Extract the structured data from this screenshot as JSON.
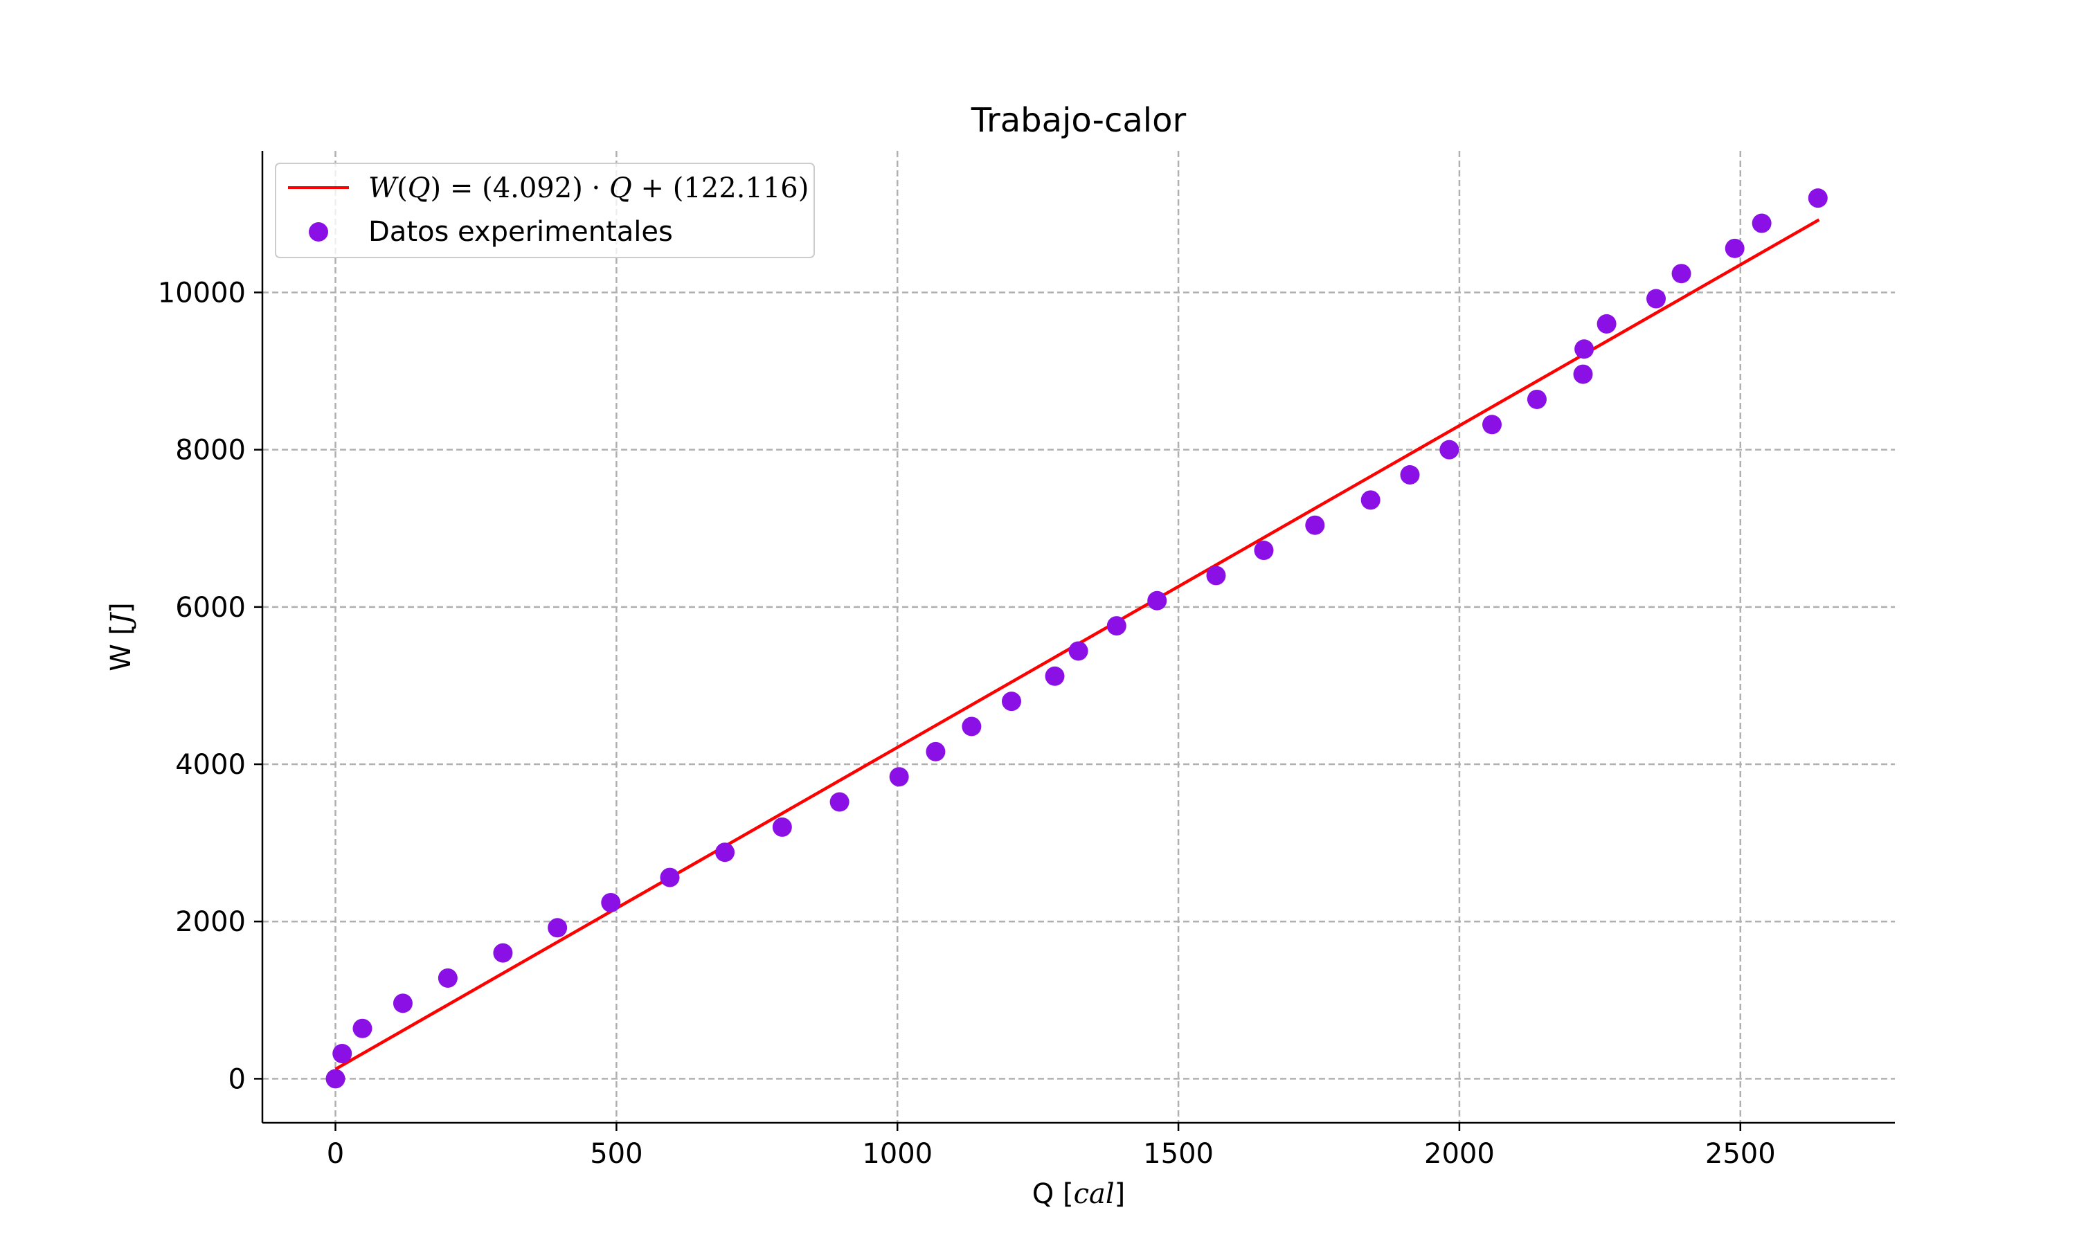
{
  "chart_data": {
    "type": "scatter",
    "title": "Trabajo-calor",
    "xlabel": "Q [cal]",
    "ylabel": "W [J]",
    "xlim": [
      -130,
      2775
    ],
    "ylim": [
      -560,
      11800
    ],
    "xticks": [
      0,
      500,
      1000,
      1500,
      2000,
      2500
    ],
    "yticks": [
      0,
      2000,
      4000,
      6000,
      8000,
      10000
    ],
    "grid": true,
    "legend_position": "top-left",
    "fit_line": {
      "name": "W(Q) = (4.092) · Q + (122.116)",
      "slope": 4.092,
      "intercept": 122.116,
      "x_range": [
        0,
        2640
      ],
      "color": "#ff0000"
    },
    "series": [
      {
        "name": "Datos experimentales",
        "color": "#8b10e6",
        "points": [
          [
            0,
            0
          ],
          [
            12,
            320
          ],
          [
            48,
            640
          ],
          [
            120,
            960
          ],
          [
            200,
            1280
          ],
          [
            298,
            1600
          ],
          [
            395,
            1920
          ],
          [
            490,
            2240
          ],
          [
            595,
            2560
          ],
          [
            693,
            2880
          ],
          [
            795,
            3200
          ],
          [
            897,
            3520
          ],
          [
            1003,
            3840
          ],
          [
            1068,
            4160
          ],
          [
            1132,
            4480
          ],
          [
            1203,
            4800
          ],
          [
            1280,
            5120
          ],
          [
            1322,
            5440
          ],
          [
            1390,
            5760
          ],
          [
            1462,
            6080
          ],
          [
            1567,
            6400
          ],
          [
            1652,
            6720
          ],
          [
            1743,
            7040
          ],
          [
            1842,
            7360
          ],
          [
            1912,
            7680
          ],
          [
            1982,
            8000
          ],
          [
            2058,
            8320
          ],
          [
            2138,
            8640
          ],
          [
            2220,
            8960
          ],
          [
            2222,
            9280
          ],
          [
            2262,
            9600
          ],
          [
            2350,
            9920
          ],
          [
            2395,
            10240
          ],
          [
            2490,
            10560
          ],
          [
            2538,
            10880
          ],
          [
            2638,
            11200
          ]
        ]
      }
    ]
  }
}
